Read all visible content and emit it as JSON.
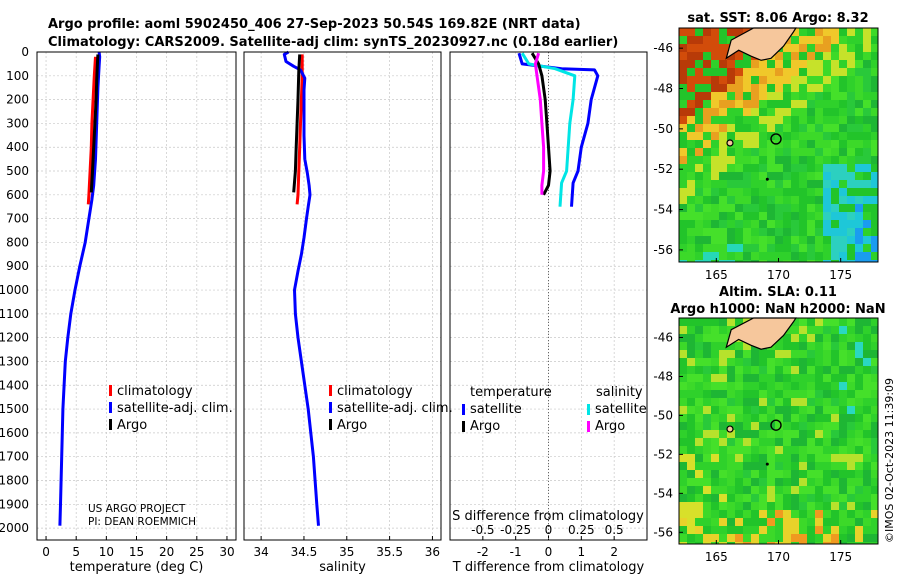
{
  "header": {
    "line1": "Argo profile: aoml 5902450_406 27-Sep-2023 50.54S 169.82E (NRT data)",
    "line2": "Climatology: CARS2009. Satellite-adj clim: synTS_20230927.nc (0.18d earlier)"
  },
  "credit": "©IMOS 02-Oct-2023 11:39:09",
  "colors": {
    "climatology": "#ff0000",
    "satellite_adj": "#0000ff",
    "argo": "#000000",
    "sat_temp": "#0000ff",
    "sat_sal": "#00e5e5",
    "argo_sal": "#ff00ff"
  },
  "chart_data": [
    {
      "type": "line",
      "id": "temperature",
      "xlabel": "temperature (deg C)",
      "xlim": [
        -1.5,
        31.5
      ],
      "xticks": [
        0,
        5,
        10,
        15,
        20,
        25,
        30
      ],
      "ylim": [
        0,
        2050
      ],
      "yticks": [
        0,
        100,
        200,
        300,
        400,
        500,
        600,
        700,
        800,
        900,
        1000,
        1100,
        1200,
        1300,
        1400,
        1500,
        1600,
        1700,
        1800,
        1900,
        2000
      ],
      "legend": [
        "climatology",
        "satellite-adj. clim.",
        "Argo"
      ],
      "note": [
        "US ARGO PROJECT",
        "PI: DEAN ROEMMICH"
      ],
      "series": [
        {
          "name": "climatology",
          "color": "#ff0000",
          "points": [
            [
              8.2,
              20
            ],
            [
              8.0,
              100
            ],
            [
              7.8,
              200
            ],
            [
              7.6,
              300
            ],
            [
              7.5,
              400
            ],
            [
              7.3,
              500
            ],
            [
              7.1,
              600
            ],
            [
              7.0,
              640
            ]
          ]
        },
        {
          "name": "satellite-adj. clim.",
          "color": "#0000ff",
          "points": [
            [
              8.8,
              0
            ],
            [
              8.9,
              20
            ],
            [
              8.8,
              60
            ],
            [
              8.6,
              150
            ],
            [
              8.4,
              300
            ],
            [
              8.2,
              450
            ],
            [
              7.9,
              560
            ],
            [
              7.6,
              620
            ],
            [
              7.1,
              700
            ],
            [
              6.5,
              800
            ],
            [
              5.6,
              900
            ],
            [
              4.8,
              1000
            ],
            [
              4.1,
              1100
            ],
            [
              3.6,
              1200
            ],
            [
              3.2,
              1300
            ],
            [
              3.0,
              1400
            ],
            [
              2.8,
              1500
            ],
            [
              2.7,
              1600
            ],
            [
              2.6,
              1700
            ],
            [
              2.5,
              1800
            ],
            [
              2.4,
              1900
            ],
            [
              2.3,
              1990
            ]
          ]
        },
        {
          "name": "Argo",
          "color": "#000000",
          "points": [
            [
              8.6,
              10
            ],
            [
              8.5,
              60
            ],
            [
              8.4,
              120
            ],
            [
              8.3,
              200
            ],
            [
              8.1,
              300
            ],
            [
              7.9,
              400
            ],
            [
              7.7,
              500
            ],
            [
              7.5,
              590
            ]
          ]
        }
      ]
    },
    {
      "type": "line",
      "id": "salinity",
      "xlabel": "salinity",
      "xlim": [
        33.8,
        36.1
      ],
      "xticks": [
        34,
        34.5,
        35,
        35.5,
        36
      ],
      "xticklabels": [
        "34",
        "34.5",
        "35",
        "35.5",
        "36"
      ],
      "ylim": [
        0,
        2050
      ],
      "yticks": [
        0,
        100,
        200,
        300,
        400,
        500,
        600,
        700,
        800,
        900,
        1000,
        1100,
        1200,
        1300,
        1400,
        1500,
        1600,
        1700,
        1800,
        1900,
        2000
      ],
      "legend": [
        "climatology",
        "satellite-adj. clim.",
        "Argo"
      ],
      "series": [
        {
          "name": "climatology",
          "color": "#ff0000",
          "points": [
            [
              34.48,
              10
            ],
            [
              34.48,
              100
            ],
            [
              34.47,
              200
            ],
            [
              34.46,
              300
            ],
            [
              34.45,
              400
            ],
            [
              34.44,
              500
            ],
            [
              34.43,
              600
            ],
            [
              34.42,
              640
            ]
          ]
        },
        {
          "name": "satellite-adj. clim.",
          "color": "#0000ff",
          "points": [
            [
              34.32,
              0
            ],
            [
              34.27,
              10
            ],
            [
              34.29,
              40
            ],
            [
              34.38,
              60
            ],
            [
              34.46,
              75
            ],
            [
              34.51,
              110
            ],
            [
              34.5,
              160
            ],
            [
              34.5,
              250
            ],
            [
              34.5,
              350
            ],
            [
              34.51,
              450
            ],
            [
              34.54,
              510
            ],
            [
              34.56,
              560
            ],
            [
              34.57,
              600
            ],
            [
              34.55,
              650
            ],
            [
              34.53,
              700
            ],
            [
              34.5,
              780
            ],
            [
              34.47,
              850
            ],
            [
              34.43,
              920
            ],
            [
              34.39,
              1000
            ],
            [
              34.4,
              1100
            ],
            [
              34.43,
              1200
            ],
            [
              34.47,
              1300
            ],
            [
              34.51,
              1400
            ],
            [
              34.55,
              1500
            ],
            [
              34.58,
              1600
            ],
            [
              34.61,
              1700
            ],
            [
              34.63,
              1800
            ],
            [
              34.65,
              1900
            ],
            [
              34.67,
              1990
            ]
          ]
        },
        {
          "name": "Argo",
          "color": "#000000",
          "points": [
            [
              34.45,
              10
            ],
            [
              34.44,
              80
            ],
            [
              34.43,
              200
            ],
            [
              34.42,
              300
            ],
            [
              34.41,
              400
            ],
            [
              34.4,
              500
            ],
            [
              34.38,
              590
            ]
          ]
        }
      ]
    },
    {
      "type": "line",
      "id": "difference",
      "xlabel": "T difference from climatology",
      "xlabel_top": "S difference from climatology",
      "xlim": [
        -3,
        3
      ],
      "xticks": [
        -2,
        -1,
        0,
        1,
        2
      ],
      "top_ticklabels": [
        "-0.5",
        "-0.25",
        "0",
        "0.25",
        "0.5"
      ],
      "ylim": [
        0,
        2050
      ],
      "legend_left": [
        "temperature",
        "satellite",
        "Argo"
      ],
      "legend_right": [
        "salinity",
        "satellite",
        "Argo"
      ],
      "series": [
        {
          "name": "temperature satellite",
          "color": "#0000ff",
          "points": [
            [
              -0.9,
              5
            ],
            [
              -0.8,
              50
            ],
            [
              0.4,
              70
            ],
            [
              1.4,
              75
            ],
            [
              1.5,
              100
            ],
            [
              1.3,
              200
            ],
            [
              1.2,
              300
            ],
            [
              1.0,
              400
            ],
            [
              0.9,
              500
            ],
            [
              0.75,
              550
            ],
            [
              0.7,
              650
            ]
          ]
        },
        {
          "name": "salinity satellite",
          "color": "#00e5e5",
          "points": [
            [
              -0.8,
              5
            ],
            [
              -0.6,
              50
            ],
            [
              0.2,
              70
            ],
            [
              0.8,
              100
            ],
            [
              0.75,
              200
            ],
            [
              0.65,
              300
            ],
            [
              0.6,
              400
            ],
            [
              0.55,
              500
            ],
            [
              0.4,
              550
            ],
            [
              0.35,
              650
            ]
          ]
        },
        {
          "name": "temperature Argo",
          "color": "#000000",
          "points": [
            [
              -0.5,
              5
            ],
            [
              -0.3,
              50
            ],
            [
              -0.2,
              100
            ],
            [
              -0.1,
              200
            ],
            [
              -0.05,
              300
            ],
            [
              0.0,
              400
            ],
            [
              0.05,
              500
            ],
            [
              0.0,
              560
            ],
            [
              -0.15,
              600
            ]
          ]
        },
        {
          "name": "salinity Argo",
          "color": "#ff00ff",
          "points": [
            [
              -0.3,
              5
            ],
            [
              -0.4,
              50
            ],
            [
              -0.35,
              100
            ],
            [
              -0.25,
              200
            ],
            [
              -0.2,
              300
            ],
            [
              -0.15,
              400
            ],
            [
              -0.15,
              500
            ],
            [
              -0.2,
              560
            ],
            [
              -0.2,
              600
            ]
          ]
        }
      ]
    },
    {
      "type": "heatmap",
      "id": "sst_map",
      "title": "sat. SST: 8.06 Argo: 8.32",
      "xticks": [
        165,
        170,
        175
      ],
      "yticks": [
        -46,
        -48,
        -50,
        -52,
        -54,
        -56
      ],
      "xlim": [
        162,
        178
      ],
      "ylim": [
        -56.6,
        -45
      ],
      "argo_position": [
        169.8,
        -50.5
      ]
    },
    {
      "type": "heatmap",
      "id": "sla_map",
      "title": "Altim. SLA: 0.11",
      "subtitle": "Argo h1000: NaN h2000: NaN",
      "xticks": [
        165,
        170,
        175
      ],
      "yticks": [
        -46,
        -48,
        -50,
        -52,
        -54,
        -56
      ],
      "xlim": [
        162,
        178
      ],
      "ylim": [
        -56.6,
        -45
      ],
      "argo_position": [
        169.8,
        -50.5
      ]
    }
  ]
}
